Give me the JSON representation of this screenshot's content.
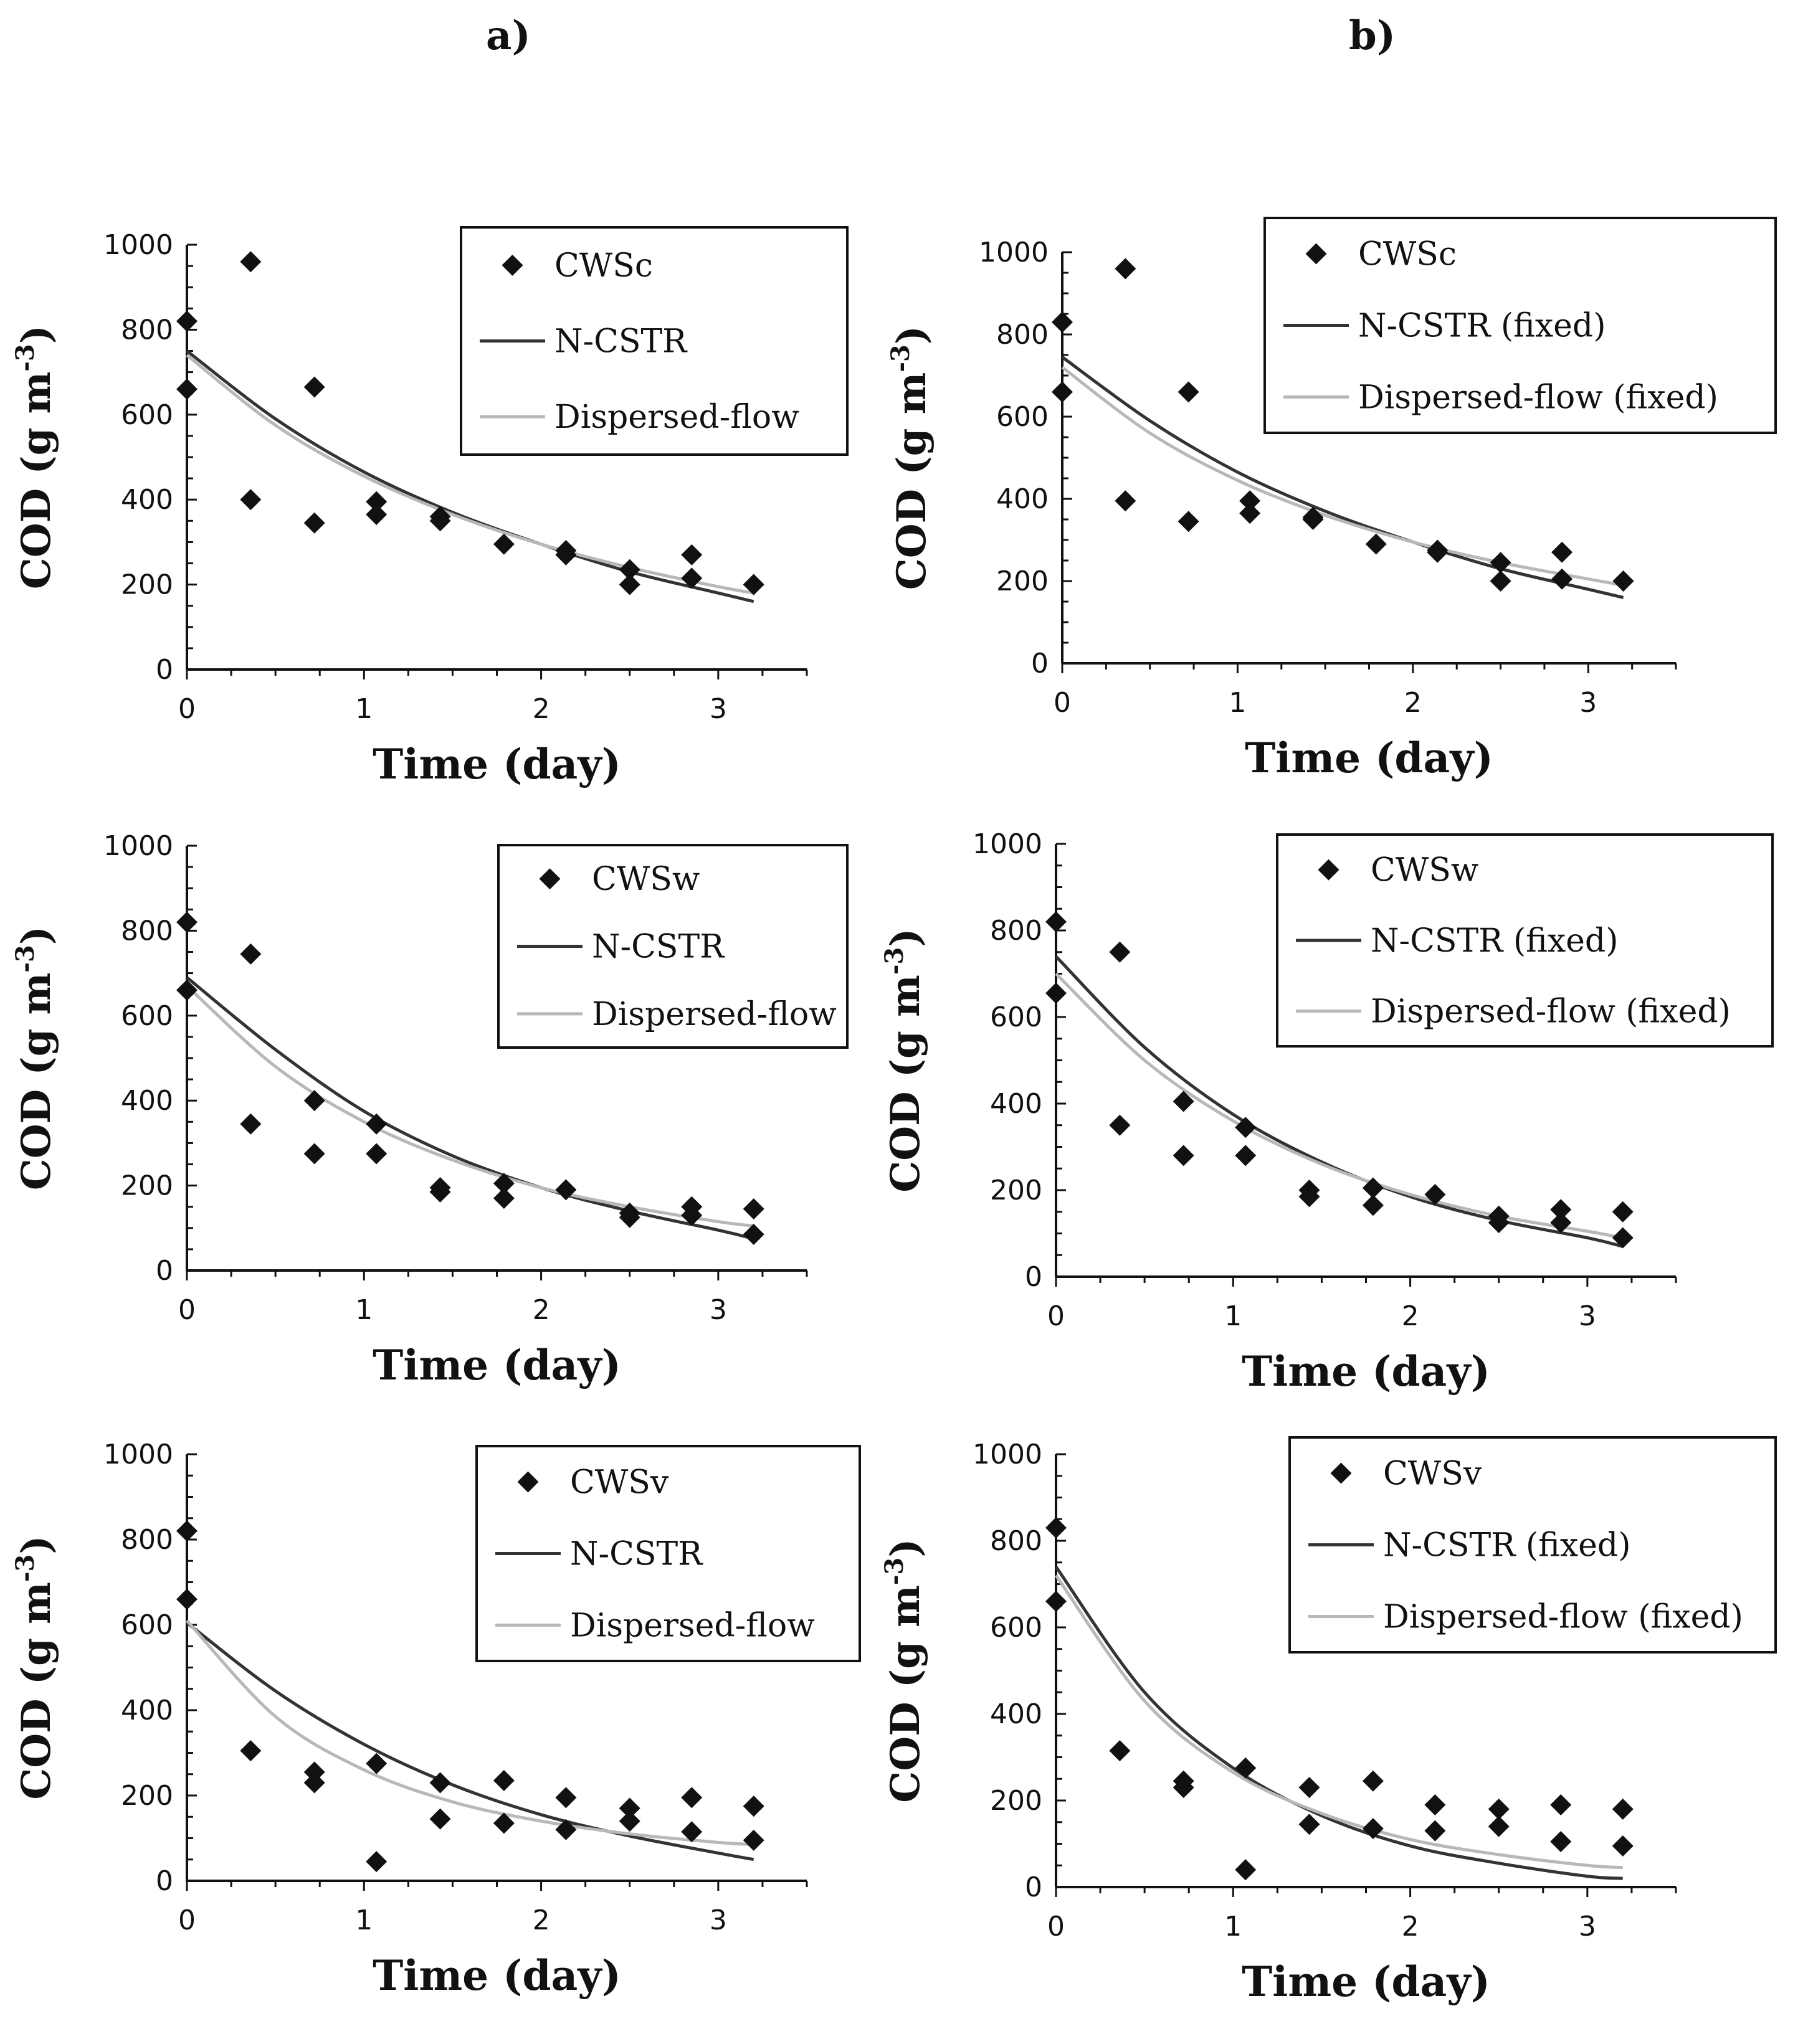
{
  "figure": {
    "col_labels": [
      "a)",
      "b)"
    ],
    "colors": {
      "marker": "#111111",
      "ncstr": "#333333",
      "dispersed": "#b8b8b8",
      "axis": "#111111"
    }
  },
  "chart_data": [
    {
      "id": "a1",
      "type": "scatter",
      "xlabel": "Time (day)",
      "ylabel": "COD (g m",
      "ylabel_sup": "-3",
      "ylabel_close": ")",
      "xlim": [
        0,
        3.5
      ],
      "ylim": [
        0,
        1000
      ],
      "xticks": [
        0,
        1,
        2,
        3
      ],
      "yticks": [
        0,
        200,
        400,
        600,
        800,
        1000
      ],
      "legend": [
        "CWSc",
        "N-CSTR",
        "Dispersed-flow"
      ],
      "series": [
        {
          "name": "CWSc",
          "kind": "points",
          "x": [
            0,
            0,
            0.36,
            0.36,
            0.72,
            0.72,
            1.07,
            1.07,
            1.43,
            1.43,
            1.79,
            2.14,
            2.14,
            2.5,
            2.5,
            2.85,
            2.85,
            3.2,
            3.2
          ],
          "y": [
            820,
            660,
            960,
            400,
            665,
            345,
            395,
            365,
            360,
            350,
            295,
            280,
            270,
            235,
            200,
            270,
            215,
            200,
            200
          ]
        },
        {
          "name": "N-CSTR",
          "kind": "line",
          "x": [
            0,
            0.5,
            1,
            1.5,
            2,
            2.5,
            3,
            3.2
          ],
          "y": [
            750,
            590,
            465,
            370,
            295,
            230,
            180,
            160
          ]
        },
        {
          "name": "Dispersed-flow",
          "kind": "line",
          "x": [
            0,
            0.5,
            1,
            1.5,
            2,
            2.5,
            3,
            3.2
          ],
          "y": [
            740,
            575,
            455,
            365,
            295,
            240,
            195,
            180
          ]
        }
      ]
    },
    {
      "id": "b1",
      "type": "scatter",
      "xlabel": "Time (day)",
      "ylabel": "COD (g m",
      "ylabel_sup": "-3",
      "ylabel_close": ")",
      "xlim": [
        0,
        3.5
      ],
      "ylim": [
        0,
        1000
      ],
      "xticks": [
        0,
        1,
        2,
        3
      ],
      "yticks": [
        0,
        200,
        400,
        600,
        800,
        1000
      ],
      "legend": [
        "CWSc",
        "N-CSTR (fixed)",
        "Dispersed-flow (fixed)"
      ],
      "series": [
        {
          "name": "CWSc",
          "kind": "points",
          "x": [
            0,
            0,
            0.36,
            0.36,
            0.72,
            0.72,
            1.07,
            1.07,
            1.43,
            1.43,
            1.79,
            2.14,
            2.14,
            2.5,
            2.5,
            2.85,
            2.85,
            3.2,
            3.2
          ],
          "y": [
            830,
            660,
            960,
            395,
            660,
            345,
            395,
            365,
            355,
            350,
            290,
            275,
            270,
            245,
            200,
            270,
            205,
            200,
            200
          ]
        },
        {
          "name": "N-CSTR (fixed)",
          "kind": "line",
          "x": [
            0,
            0.5,
            1,
            1.5,
            2,
            2.5,
            3,
            3.2
          ],
          "y": [
            745,
            590,
            465,
            370,
            295,
            230,
            180,
            160
          ]
        },
        {
          "name": "Dispersed-flow (fixed)",
          "kind": "line",
          "x": [
            0,
            0.5,
            1,
            1.5,
            2,
            2.5,
            3,
            3.2
          ],
          "y": [
            720,
            560,
            445,
            360,
            295,
            245,
            205,
            190
          ]
        }
      ]
    },
    {
      "id": "a2",
      "type": "scatter",
      "xlabel": "Time (day)",
      "ylabel": "COD (g m",
      "ylabel_sup": "-3",
      "ylabel_close": ")",
      "xlim": [
        0,
        3.5
      ],
      "ylim": [
        0,
        1000
      ],
      "xticks": [
        0,
        1,
        2,
        3
      ],
      "yticks": [
        0,
        200,
        400,
        600,
        800,
        1000
      ],
      "legend": [
        "CWSw",
        "N-CSTR",
        "Dispersed-flow"
      ],
      "series": [
        {
          "name": "CWSw",
          "kind": "points",
          "x": [
            0,
            0,
            0.36,
            0.36,
            0.72,
            0.72,
            1.07,
            1.07,
            1.43,
            1.43,
            1.79,
            1.79,
            2.14,
            2.5,
            2.5,
            2.85,
            2.85,
            3.2,
            3.2
          ],
          "y": [
            820,
            660,
            745,
            345,
            400,
            275,
            345,
            275,
            195,
            185,
            205,
            170,
            190,
            135,
            125,
            150,
            130,
            145,
            85
          ]
        },
        {
          "name": "N-CSTR",
          "kind": "line",
          "x": [
            0,
            0.5,
            1,
            1.5,
            2,
            2.5,
            3,
            3.2
          ],
          "y": [
            690,
            520,
            375,
            270,
            195,
            140,
            95,
            75
          ]
        },
        {
          "name": "Dispersed-flow",
          "kind": "line",
          "x": [
            0,
            0.5,
            1,
            1.5,
            2,
            2.5,
            3,
            3.2
          ],
          "y": [
            670,
            480,
            350,
            260,
            195,
            150,
            115,
            105
          ]
        }
      ]
    },
    {
      "id": "b2",
      "type": "scatter",
      "xlabel": "Time (day)",
      "ylabel": "COD (g m",
      "ylabel_sup": "-3",
      "ylabel_close": ")",
      "xlim": [
        0,
        3.5
      ],
      "ylim": [
        0,
        1000
      ],
      "xticks": [
        0,
        1,
        2,
        3
      ],
      "yticks": [
        0,
        200,
        400,
        600,
        800,
        1000
      ],
      "legend": [
        "CWSw",
        "N-CSTR (fixed)",
        "Dispersed-flow (fixed)"
      ],
      "series": [
        {
          "name": "CWSw",
          "kind": "points",
          "x": [
            0,
            0,
            0.36,
            0.36,
            0.72,
            0.72,
            1.07,
            1.07,
            1.43,
            1.43,
            1.79,
            1.79,
            2.14,
            2.5,
            2.5,
            2.85,
            2.85,
            3.2,
            3.2
          ],
          "y": [
            820,
            655,
            750,
            350,
            405,
            280,
            345,
            280,
            200,
            185,
            205,
            165,
            190,
            140,
            125,
            155,
            125,
            150,
            90
          ]
        },
        {
          "name": "N-CSTR (fixed)",
          "kind": "line",
          "x": [
            0,
            0.5,
            1,
            1.5,
            2,
            2.5,
            3,
            3.2
          ],
          "y": [
            740,
            530,
            375,
            265,
            185,
            130,
            90,
            70
          ]
        },
        {
          "name": "Dispersed-flow (fixed)",
          "kind": "line",
          "x": [
            0,
            0.5,
            1,
            1.5,
            2,
            2.5,
            3,
            3.2
          ],
          "y": [
            700,
            500,
            360,
            260,
            190,
            140,
            105,
            90
          ]
        }
      ]
    },
    {
      "id": "a3",
      "type": "scatter",
      "xlabel": "Time (day)",
      "ylabel": "COD (g m",
      "ylabel_sup": "-3",
      "ylabel_close": ")",
      "xlim": [
        0,
        3.5
      ],
      "ylim": [
        0,
        1000
      ],
      "xticks": [
        0,
        1,
        2,
        3
      ],
      "yticks": [
        0,
        200,
        400,
        600,
        800,
        1000
      ],
      "legend": [
        "CWSv",
        "N-CSTR",
        "Dispersed-flow"
      ],
      "series": [
        {
          "name": "CWSv",
          "kind": "points",
          "x": [
            0,
            0,
            0.36,
            0.72,
            0.72,
            1.07,
            1.07,
            1.43,
            1.43,
            1.79,
            1.79,
            2.14,
            2.14,
            2.5,
            2.5,
            2.85,
            2.85,
            3.2,
            3.2
          ],
          "y": [
            820,
            660,
            305,
            255,
            230,
            275,
            45,
            230,
            145,
            235,
            135,
            195,
            120,
            170,
            140,
            195,
            115,
            175,
            95
          ]
        },
        {
          "name": "N-CSTR",
          "kind": "line",
          "x": [
            0,
            0.5,
            1,
            1.5,
            2,
            2.5,
            3,
            3.2
          ],
          "y": [
            605,
            445,
            320,
            225,
            155,
            105,
            65,
            50
          ]
        },
        {
          "name": "Dispersed-flow",
          "kind": "line",
          "x": [
            0,
            0.5,
            1,
            1.5,
            2,
            2.5,
            3,
            3.2
          ],
          "y": [
            610,
            385,
            260,
            185,
            140,
            110,
            90,
            85
          ]
        }
      ]
    },
    {
      "id": "b3",
      "type": "scatter",
      "xlabel": "Time (day)",
      "ylabel": "COD (g m",
      "ylabel_sup": "-3",
      "ylabel_close": ")",
      "xlim": [
        0,
        3.5
      ],
      "ylim": [
        0,
        1000
      ],
      "xticks": [
        0,
        1,
        2,
        3
      ],
      "yticks": [
        0,
        200,
        400,
        600,
        800,
        1000
      ],
      "legend": [
        "CWSv",
        "N-CSTR (fixed)",
        "Dispersed-flow (fixed)"
      ],
      "series": [
        {
          "name": "CWSv",
          "kind": "points",
          "x": [
            0,
            0,
            0.36,
            0.72,
            0.72,
            1.07,
            1.07,
            1.43,
            1.43,
            1.79,
            1.79,
            2.14,
            2.14,
            2.5,
            2.5,
            2.85,
            2.85,
            3.2,
            3.2
          ],
          "y": [
            830,
            660,
            315,
            245,
            230,
            275,
            40,
            230,
            145,
            245,
            135,
            190,
            130,
            180,
            140,
            190,
            105,
            180,
            95
          ]
        },
        {
          "name": "N-CSTR (fixed)",
          "kind": "line",
          "x": [
            0,
            0.5,
            1,
            1.5,
            2,
            2.5,
            3,
            3.2
          ],
          "y": [
            740,
            450,
            275,
            165,
            95,
            55,
            25,
            20
          ]
        },
        {
          "name": "Dispersed-flow (fixed)",
          "kind": "line",
          "x": [
            0,
            0.5,
            1,
            1.5,
            2,
            2.5,
            3,
            3.2
          ],
          "y": [
            720,
            430,
            265,
            170,
            110,
            75,
            50,
            45
          ]
        }
      ]
    }
  ]
}
